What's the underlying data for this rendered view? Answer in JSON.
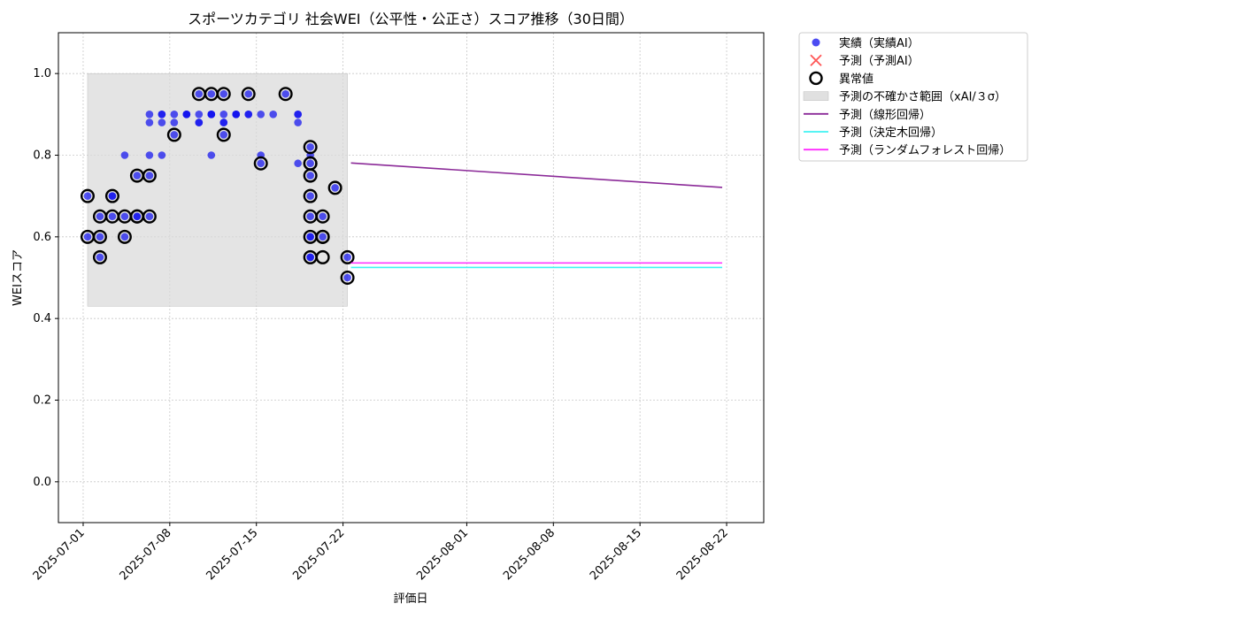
{
  "chart_data": {
    "type": "scatter",
    "title": "スポーツカテゴリ 社会WEI（公平性・公正さ）スコア推移（30日間）",
    "xlabel": "評価日",
    "ylabel": "WEIスコア",
    "xlim": [
      "2025-06-29",
      "2025-08-25"
    ],
    "ylim": [
      -0.1,
      1.1
    ],
    "yticks": [
      0.0,
      0.2,
      0.4,
      0.6,
      0.8,
      1.0
    ],
    "ytick_labels": [
      "0.0",
      "0.2",
      "0.4",
      "0.6",
      "0.8",
      "1.0"
    ],
    "xticks": [
      "2025-07-01",
      "2025-07-08",
      "2025-07-15",
      "2025-07-22",
      "2025-08-01",
      "2025-08-08",
      "2025-08-15",
      "2025-08-22"
    ],
    "grid": true,
    "legend_position": "outside-top-right",
    "colors": {
      "actual": "#1010ee",
      "predicted": "#ff2a2a",
      "anomaly": "#000000",
      "band": "#d8d8d8",
      "linear": "#8b2a98",
      "tree": "#3ff2f2",
      "forest": "#ff2aff"
    },
    "legend": [
      {
        "key": "actual",
        "label": "実績（実績AI）",
        "marker": "dot"
      },
      {
        "key": "predicted",
        "label": "予測（予測AI）",
        "marker": "cross"
      },
      {
        "key": "anomaly",
        "label": "異常値",
        "marker": "ring"
      },
      {
        "key": "band",
        "label": "予測の不確かさ範囲（xAI/３σ）",
        "marker": "rect"
      },
      {
        "key": "linear",
        "label": "予測（線形回帰）",
        "marker": "line"
      },
      {
        "key": "tree",
        "label": "予測（決定木回帰）",
        "marker": "line"
      },
      {
        "key": "forest",
        "label": "予測（ランダムフォレスト回帰）",
        "marker": "line"
      }
    ],
    "uncertainty_band": {
      "x": [
        "2025-07-01",
        "2025-07-22"
      ],
      "y": [
        0.43,
        1.0
      ]
    },
    "actual_points": [
      {
        "x": "2025-07-01",
        "y": 0.6
      },
      {
        "x": "2025-07-01",
        "y": 0.7
      },
      {
        "x": "2025-07-02",
        "y": 0.55
      },
      {
        "x": "2025-07-02",
        "y": 0.6
      },
      {
        "x": "2025-07-02",
        "y": 0.65
      },
      {
        "x": "2025-07-03",
        "y": 0.65
      },
      {
        "x": "2025-07-03",
        "y": 0.7
      },
      {
        "x": "2025-07-03",
        "y": 0.7
      },
      {
        "x": "2025-07-04",
        "y": 0.6
      },
      {
        "x": "2025-07-04",
        "y": 0.65
      },
      {
        "x": "2025-07-04",
        "y": 0.8
      },
      {
        "x": "2025-07-05",
        "y": 0.65
      },
      {
        "x": "2025-07-05",
        "y": 0.65
      },
      {
        "x": "2025-07-05",
        "y": 0.75
      },
      {
        "x": "2025-07-06",
        "y": 0.75
      },
      {
        "x": "2025-07-06",
        "y": 0.65
      },
      {
        "x": "2025-07-06",
        "y": 0.8
      },
      {
        "x": "2025-07-06",
        "y": 0.9
      },
      {
        "x": "2025-07-06",
        "y": 0.88
      },
      {
        "x": "2025-07-07",
        "y": 0.88
      },
      {
        "x": "2025-07-07",
        "y": 0.9
      },
      {
        "x": "2025-07-07",
        "y": 0.9
      },
      {
        "x": "2025-07-07",
        "y": 0.8
      },
      {
        "x": "2025-07-08",
        "y": 0.85
      },
      {
        "x": "2025-07-08",
        "y": 0.9
      },
      {
        "x": "2025-07-08",
        "y": 0.88
      },
      {
        "x": "2025-07-09",
        "y": 0.9
      },
      {
        "x": "2025-07-09",
        "y": 0.9
      },
      {
        "x": "2025-07-09",
        "y": 0.9
      },
      {
        "x": "2025-07-10",
        "y": 0.95
      },
      {
        "x": "2025-07-10",
        "y": 0.9
      },
      {
        "x": "2025-07-10",
        "y": 0.88
      },
      {
        "x": "2025-07-10",
        "y": 0.88
      },
      {
        "x": "2025-07-11",
        "y": 0.9
      },
      {
        "x": "2025-07-11",
        "y": 0.9
      },
      {
        "x": "2025-07-11",
        "y": 0.95
      },
      {
        "x": "2025-07-11",
        "y": 0.8
      },
      {
        "x": "2025-07-11",
        "y": 0.9
      },
      {
        "x": "2025-07-12",
        "y": 0.88
      },
      {
        "x": "2025-07-12",
        "y": 0.9
      },
      {
        "x": "2025-07-12",
        "y": 0.95
      },
      {
        "x": "2025-07-12",
        "y": 0.85
      },
      {
        "x": "2025-07-12",
        "y": 0.88
      },
      {
        "x": "2025-07-13",
        "y": 0.9
      },
      {
        "x": "2025-07-13",
        "y": 0.9
      },
      {
        "x": "2025-07-13",
        "y": 0.9
      },
      {
        "x": "2025-07-14",
        "y": 0.9
      },
      {
        "x": "2025-07-14",
        "y": 0.9
      },
      {
        "x": "2025-07-14",
        "y": 0.95
      },
      {
        "x": "2025-07-15",
        "y": 0.9
      },
      {
        "x": "2025-07-15",
        "y": 0.78
      },
      {
        "x": "2025-07-15",
        "y": 0.8
      },
      {
        "x": "2025-07-16",
        "y": 0.9
      },
      {
        "x": "2025-07-17",
        "y": 0.95
      },
      {
        "x": "2025-07-18",
        "y": 0.88
      },
      {
        "x": "2025-07-18",
        "y": 0.78
      },
      {
        "x": "2025-07-18",
        "y": 0.9
      },
      {
        "x": "2025-07-18",
        "y": 0.9
      },
      {
        "x": "2025-07-19",
        "y": 0.82
      },
      {
        "x": "2025-07-19",
        "y": 0.8
      },
      {
        "x": "2025-07-19",
        "y": 0.78
      },
      {
        "x": "2025-07-19",
        "y": 0.75
      },
      {
        "x": "2025-07-19",
        "y": 0.7
      },
      {
        "x": "2025-07-19",
        "y": 0.65
      },
      {
        "x": "2025-07-19",
        "y": 0.6
      },
      {
        "x": "2025-07-19",
        "y": 0.55
      },
      {
        "x": "2025-07-19",
        "y": 0.6
      },
      {
        "x": "2025-07-19",
        "y": 0.55
      },
      {
        "x": "2025-07-20",
        "y": 0.6
      },
      {
        "x": "2025-07-20",
        "y": 0.65
      },
      {
        "x": "2025-07-21",
        "y": 0.72
      },
      {
        "x": "2025-07-22",
        "y": 0.55
      },
      {
        "x": "2025-07-22",
        "y": 0.5
      }
    ],
    "anomaly_points": [
      {
        "x": "2025-07-01",
        "y": 0.6
      },
      {
        "x": "2025-07-01",
        "y": 0.7
      },
      {
        "x": "2025-07-02",
        "y": 0.55
      },
      {
        "x": "2025-07-02",
        "y": 0.6
      },
      {
        "x": "2025-07-02",
        "y": 0.65
      },
      {
        "x": "2025-07-03",
        "y": 0.65
      },
      {
        "x": "2025-07-03",
        "y": 0.7
      },
      {
        "x": "2025-07-04",
        "y": 0.6
      },
      {
        "x": "2025-07-04",
        "y": 0.65
      },
      {
        "x": "2025-07-05",
        "y": 0.65
      },
      {
        "x": "2025-07-05",
        "y": 0.65
      },
      {
        "x": "2025-07-05",
        "y": 0.75
      },
      {
        "x": "2025-07-06",
        "y": 0.75
      },
      {
        "x": "2025-07-06",
        "y": 0.65
      },
      {
        "x": "2025-07-08",
        "y": 0.85
      },
      {
        "x": "2025-07-10",
        "y": 0.95
      },
      {
        "x": "2025-07-11",
        "y": 0.95
      },
      {
        "x": "2025-07-12",
        "y": 0.95
      },
      {
        "x": "2025-07-12",
        "y": 0.85
      },
      {
        "x": "2025-07-14",
        "y": 0.95
      },
      {
        "x": "2025-07-15",
        "y": 0.78
      },
      {
        "x": "2025-07-17",
        "y": 0.95
      },
      {
        "x": "2025-07-19",
        "y": 0.78
      },
      {
        "x": "2025-07-19",
        "y": 0.78
      },
      {
        "x": "2025-07-19",
        "y": 0.82
      },
      {
        "x": "2025-07-19",
        "y": 0.75
      },
      {
        "x": "2025-07-19",
        "y": 0.7
      },
      {
        "x": "2025-07-19",
        "y": 0.65
      },
      {
        "x": "2025-07-19",
        "y": 0.6
      },
      {
        "x": "2025-07-19",
        "y": 0.55
      },
      {
        "x": "2025-07-20",
        "y": 0.6
      },
      {
        "x": "2025-07-20",
        "y": 0.55
      },
      {
        "x": "2025-07-20",
        "y": 0.6
      },
      {
        "x": "2025-07-20",
        "y": 0.65
      },
      {
        "x": "2025-07-21",
        "y": 0.72
      },
      {
        "x": "2025-07-22",
        "y": 0.55
      },
      {
        "x": "2025-07-22",
        "y": 0.5
      }
    ],
    "series": [
      {
        "key": "linear",
        "x": [
          "2025-07-23",
          "2025-08-22"
        ],
        "y": [
          0.781,
          0.721
        ]
      },
      {
        "key": "tree",
        "x": [
          "2025-07-23",
          "2025-08-22"
        ],
        "y": [
          0.525,
          0.525
        ]
      },
      {
        "key": "forest",
        "x": [
          "2025-07-23",
          "2025-08-22"
        ],
        "y": [
          0.536,
          0.536
        ]
      }
    ]
  }
}
